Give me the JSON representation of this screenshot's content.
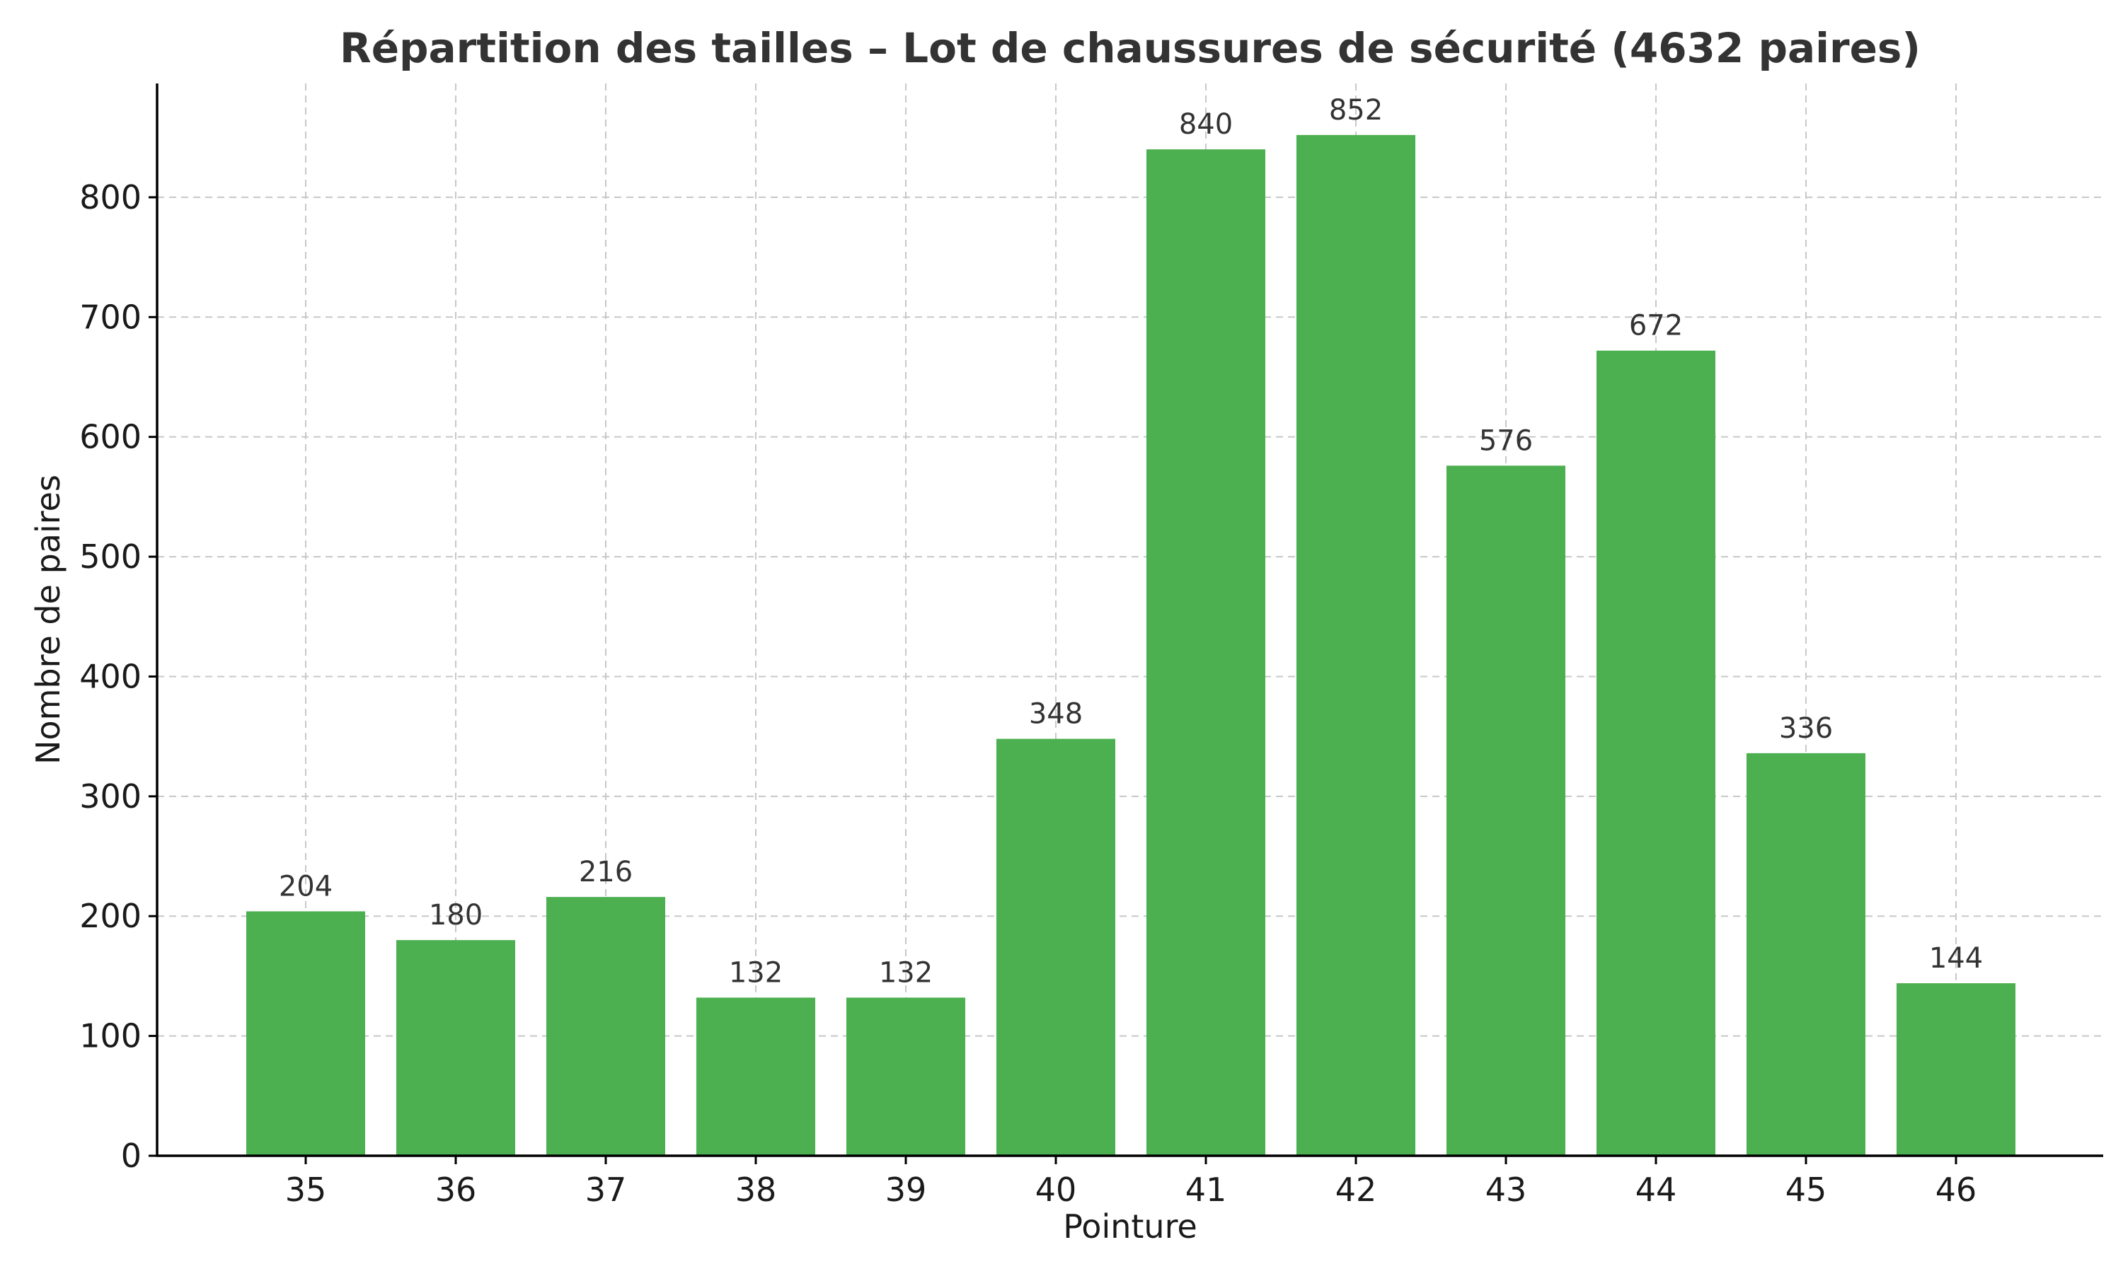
{
  "chart_data": {
    "type": "bar",
    "title": "Répartition des tailles – Lot de chaussures de sécurité (4632 paires)",
    "xlabel": "Pointure",
    "ylabel": "Nombre de paires",
    "categories": [
      "35",
      "36",
      "37",
      "38",
      "39",
      "40",
      "41",
      "42",
      "43",
      "44",
      "45",
      "46"
    ],
    "values": [
      204,
      180,
      216,
      132,
      132,
      348,
      840,
      852,
      576,
      672,
      336,
      144
    ],
    "series": [
      {
        "name": "Nombre de paires",
        "values": [
          204,
          180,
          216,
          132,
          132,
          348,
          840,
          852,
          576,
          672,
          336,
          144
        ]
      }
    ],
    "ylim": [
      0,
      895
    ],
    "yticks": [
      0,
      100,
      200,
      300,
      400,
      500,
      600,
      700,
      800
    ],
    "grid": true,
    "bar_color": "#4caf50",
    "grid_color": "#c8c8c8",
    "text_color": "#333333"
  }
}
